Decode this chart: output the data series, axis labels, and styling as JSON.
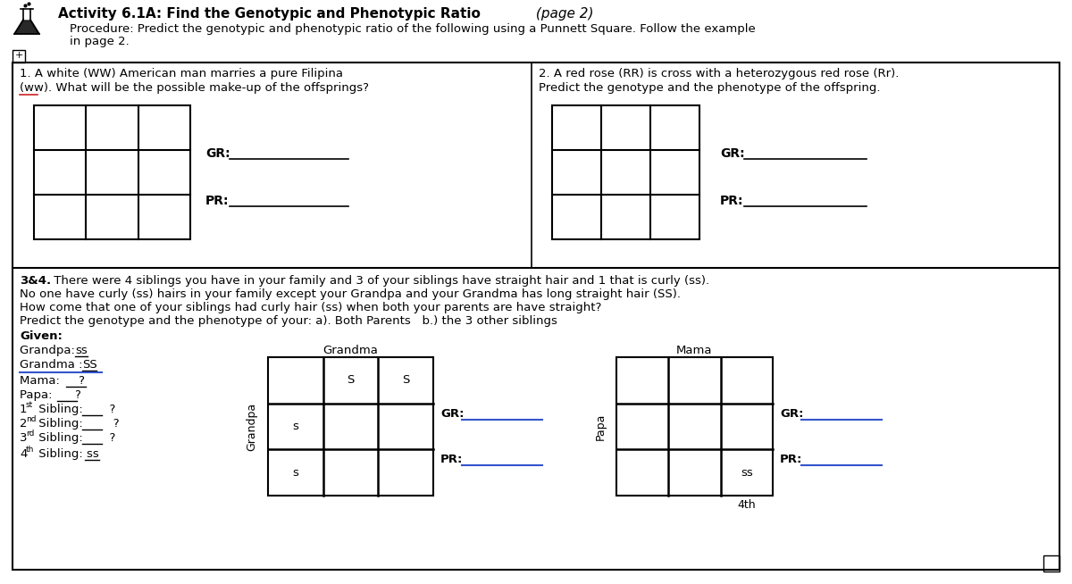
{
  "title_bold": "Activity 6.1A: Find the Genotypic and Phenotypic Ratio",
  "title_italic": " (page 2)",
  "proc_line1": "Procedure: Predict the genotypic and phenotypic ratio of the following using a Punnett Square. Follow the example",
  "proc_line2": "in page 2.",
  "q1_line1": "1. A white (WW) American man marries a pure Filipina",
  "q1_line2": "(ww). What will be the possible make-up of the offsprings?",
  "q2_line1": "2. A red rose (RR) is cross with a heterozygous red rose (Rr).",
  "q2_line2": "Predict the genotype and the phenotype of the offspring.",
  "q34_line1": "3&4. There were 4 siblings you have in your family and 3 of your siblings have straight hair and 1 that is curly (ss).",
  "q34_line2": "No one have curly (ss) hairs in your family except your Grandpa and your Grandma has long straight hair (SS).",
  "q34_line3": "How come that one of your siblings had curly hair (ss) when both your parents are have straight?",
  "q34_line4": "Predict the genotype and the phenotype of your: a). Both Parents   b.) the 3 other siblings",
  "given": "Given:",
  "grandpa": "Grandpa: ss",
  "grandma": "Grandma : SS",
  "mama": "Mama:      ?",
  "papa": "Papa:       ?",
  "sib1": "1st Sibling:       ?",
  "sib2": "2nd Sibling:        ?",
  "sib3": "3rd Sibling:       ?",
  "sib4": "4th Sibling: ss",
  "bg": "#ffffff",
  "black": "#000000",
  "blue": "#3355cc",
  "red_wavy": "#cc2222",
  "gray_line": "#555555"
}
